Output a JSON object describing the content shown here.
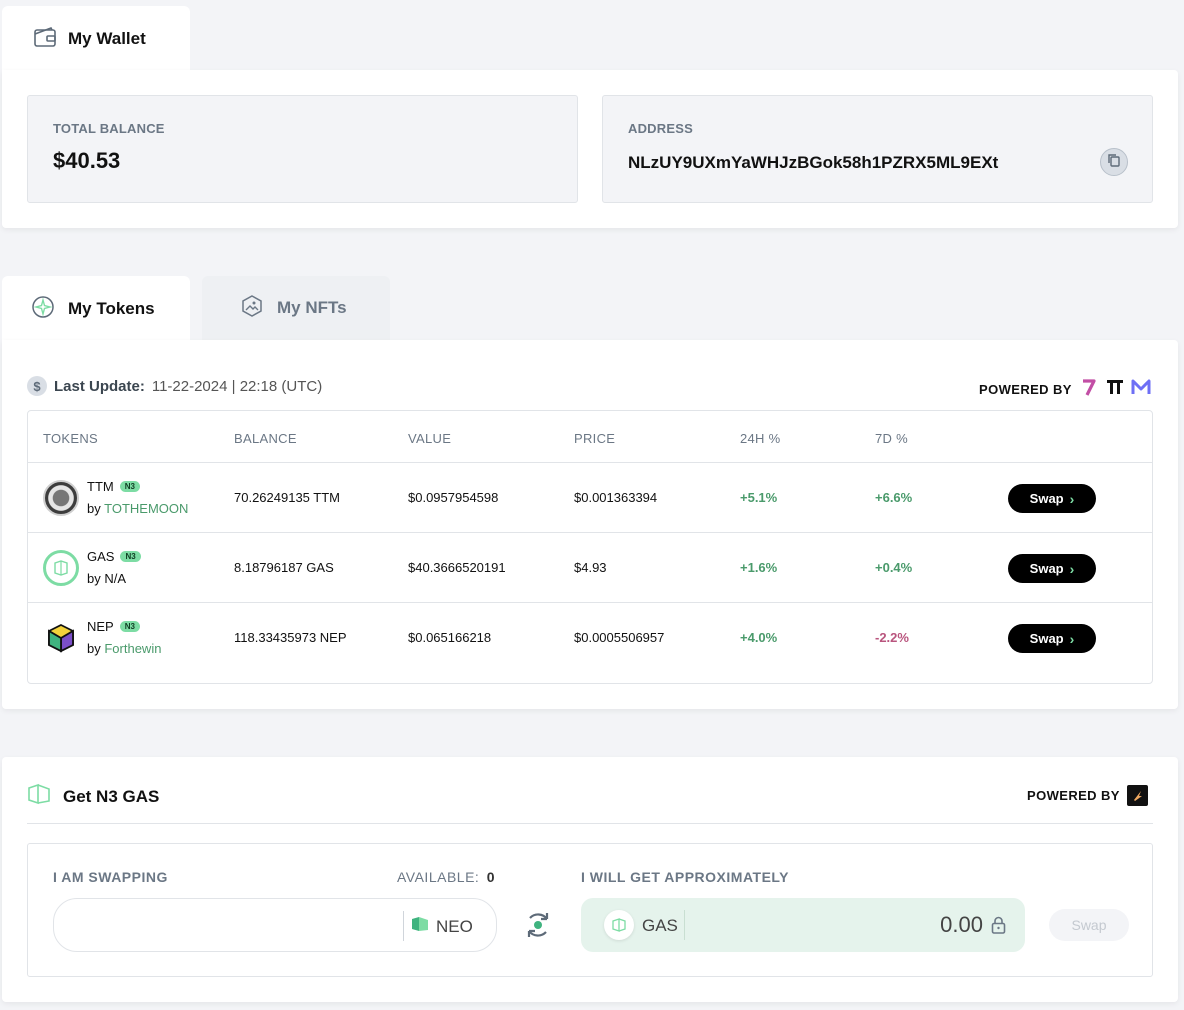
{
  "wallet": {
    "tab_label": "My Wallet",
    "total_balance_label": "TOTAL BALANCE",
    "total_balance_value": "$40.53",
    "address_label": "ADDRESS",
    "address_value": "NLzUY9UXmYaWHJzBGok58h1PZRX5ML9EXt"
  },
  "assets_tabs": {
    "tokens": "My Tokens",
    "nfts": "My NFTs"
  },
  "tokens_panel": {
    "last_update_label": "Last Update:",
    "last_update_value": "11-22-2024 | 22:18 (UTC)",
    "powered_by": "POWERED BY",
    "columns": [
      "TOKENS",
      "BALANCE",
      "VALUE",
      "PRICE",
      "24H %",
      "7D %"
    ],
    "rows": [
      {
        "symbol": "TTM",
        "badge": "N3",
        "by_prefix": "by",
        "by": "TOTHEMOON",
        "balance": "70.26249135 TTM",
        "value": "$0.0957954598",
        "price": "$0.001363394",
        "change_24h": "+5.1%",
        "change_7d": "+6.6%",
        "swap": "Swap"
      },
      {
        "symbol": "GAS",
        "badge": "N3",
        "by_prefix": "by",
        "by": "N/A",
        "balance": "8.18796187 GAS",
        "value": "$40.3666520191",
        "price": "$4.93",
        "change_24h": "+1.6%",
        "change_7d": "+0.4%",
        "swap": "Swap"
      },
      {
        "symbol": "NEP",
        "badge": "N3",
        "by_prefix": "by",
        "by": "Forthewin",
        "balance": "118.33435973 NEP",
        "value": "$0.065166218",
        "price": "$0.0005506957",
        "change_24h": "+4.0%",
        "change_7d": "-2.2%",
        "swap": "Swap"
      }
    ]
  },
  "gas_panel": {
    "title": "Get N3 GAS",
    "powered_by": "POWERED BY",
    "swapping_label": "I AM SWAPPING",
    "available_label": "AVAILABLE:",
    "available_value": "0",
    "from_token": "NEO",
    "get_label": "I WILL GET APPROXIMATELY",
    "to_token": "GAS",
    "amount": "0.00",
    "swap_button": "Swap"
  },
  "colors": {
    "accent_green": "#7ddca4",
    "positive": "#4a9a6b",
    "negative": "#b9557e",
    "background": "#f3f4f7"
  },
  "icons": [
    "wallet-icon",
    "copy-icon",
    "tokens-icon",
    "nfts-icon",
    "dollar-icon",
    "refresh-swap-icon",
    "lock-icon",
    "neo-icon",
    "gas-icon"
  ]
}
